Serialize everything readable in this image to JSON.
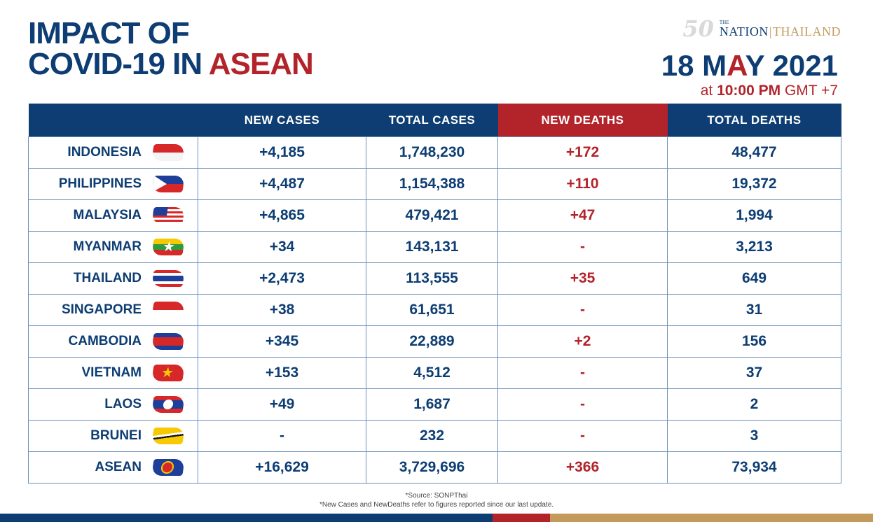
{
  "title": {
    "line1": "IMPACT OF",
    "line2_pre": "COVID-19 IN ",
    "line2_red": "ASEAN"
  },
  "logo": {
    "anniversary": "50",
    "the": "THE",
    "name_a": "NATION",
    "name_sep": "|",
    "name_b": "THAILAND"
  },
  "date": {
    "pre": "18 M",
    "red": "A",
    "post": "Y 2021"
  },
  "time": {
    "at": "at ",
    "clock": "10:00 PM",
    "zone": " GMT +7"
  },
  "table": {
    "headers": {
      "country": "",
      "new_cases": "NEW CASES",
      "total_cases": "TOTAL CASES",
      "new_deaths": "NEW DEATHS",
      "total_deaths": "TOTAL DEATHS"
    },
    "rows": [
      {
        "country": "INDONESIA",
        "flag": "indonesia-flag-icon",
        "new_cases": "+4,185",
        "total_cases": "1,748,230",
        "new_deaths": "+172",
        "total_deaths": "48,477"
      },
      {
        "country": "PHILIPPINES",
        "flag": "philippines-flag-icon",
        "new_cases": "+4,487",
        "total_cases": "1,154,388",
        "new_deaths": "+110",
        "total_deaths": "19,372"
      },
      {
        "country": "MALAYSIA",
        "flag": "malaysia-flag-icon",
        "new_cases": "+4,865",
        "total_cases": "479,421",
        "new_deaths": "+47",
        "total_deaths": "1,994"
      },
      {
        "country": "MYANMAR",
        "flag": "myanmar-flag-icon",
        "new_cases": "+34",
        "total_cases": "143,131",
        "new_deaths": "-",
        "total_deaths": "3,213"
      },
      {
        "country": "THAILAND",
        "flag": "thailand-flag-icon",
        "new_cases": "+2,473",
        "total_cases": "113,555",
        "new_deaths": "+35",
        "total_deaths": "649"
      },
      {
        "country": "SINGAPORE",
        "flag": "singapore-flag-icon",
        "new_cases": "+38",
        "total_cases": "61,651",
        "new_deaths": "-",
        "total_deaths": "31"
      },
      {
        "country": "CAMBODIA",
        "flag": "cambodia-flag-icon",
        "new_cases": "+345",
        "total_cases": "22,889",
        "new_deaths": "+2",
        "total_deaths": "156"
      },
      {
        "country": "VIETNAM",
        "flag": "vietnam-flag-icon",
        "new_cases": "+153",
        "total_cases": "4,512",
        "new_deaths": "-",
        "total_deaths": "37"
      },
      {
        "country": "LAOS",
        "flag": "laos-flag-icon",
        "new_cases": "+49",
        "total_cases": "1,687",
        "new_deaths": "-",
        "total_deaths": "2"
      },
      {
        "country": "BRUNEI",
        "flag": "brunei-flag-icon",
        "new_cases": "-",
        "total_cases": "232",
        "new_deaths": "-",
        "total_deaths": "3"
      },
      {
        "country": "ASEAN",
        "flag": "asean-flag-icon",
        "new_cases": "+16,629",
        "total_cases": "3,729,696",
        "new_deaths": "+366",
        "total_deaths": "73,934"
      }
    ]
  },
  "footnotes": {
    "source": "*Source: SONPThai",
    "note": "*New Cases and NewDeaths refer to figures reported since our last update."
  },
  "colors": {
    "navy": "#0d3d73",
    "red": "#b3232a",
    "gold": "#c49a5a"
  }
}
